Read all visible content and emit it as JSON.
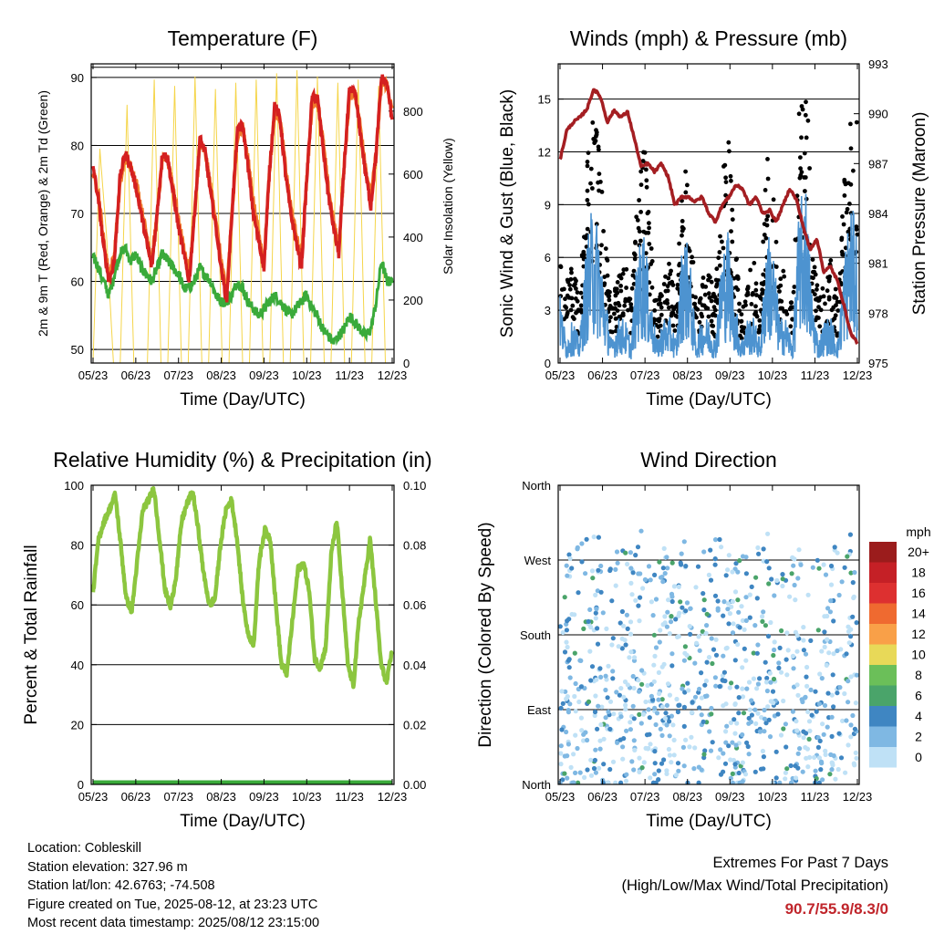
{
  "chart_data": [
    {
      "type": "line",
      "title": "Temperature (F)",
      "xlabel": "Time (Day/UTC)",
      "ylabel": "2m & 9m T (Red, Orange) & 2m Td (Green)",
      "ylabel_right": "Solar Insolation (Yellow)",
      "x_ticks": [
        "05/23",
        "06/23",
        "07/23",
        "08/23",
        "09/23",
        "10/23",
        "11/23",
        "12/23"
      ],
      "ylim": [
        48,
        92
      ],
      "y_ticks": [
        50,
        60,
        70,
        80,
        90
      ],
      "ylim_right": [
        0,
        950
      ],
      "y_ticks_right": [
        0,
        200,
        400,
        600,
        800
      ],
      "grid": "horizontal",
      "series": [
        {
          "name": "2m T",
          "color": "#d42020",
          "axis": "left",
          "values": [
            77,
            72,
            65,
            60,
            63,
            75,
            79,
            77,
            74,
            70,
            66,
            62,
            70,
            79,
            78,
            73,
            68,
            64,
            60,
            70,
            81,
            79,
            73,
            68,
            62,
            57,
            70,
            82,
            83,
            77,
            70,
            66,
            62,
            76,
            86,
            84,
            76,
            70,
            66,
            62,
            75,
            87,
            87,
            80,
            73,
            68,
            64,
            77,
            88,
            88,
            82,
            76,
            71,
            79,
            90,
            89,
            84
          ]
        },
        {
          "name": "9m T",
          "color": "#f07a2a",
          "axis": "left",
          "values": [
            76,
            73,
            66,
            61,
            64,
            74,
            78,
            77,
            75,
            71,
            67,
            63,
            70,
            78,
            78,
            74,
            69,
            65,
            61,
            70,
            80,
            79,
            74,
            69,
            63,
            58,
            70,
            81,
            83,
            78,
            72,
            67,
            63,
            76,
            85,
            84,
            77,
            71,
            67,
            63,
            75,
            86,
            87,
            81,
            74,
            69,
            65,
            77,
            87,
            88,
            83,
            77,
            72,
            79,
            89,
            89,
            85
          ]
        },
        {
          "name": "2m Td",
          "color": "#3aaa3a",
          "axis": "left",
          "values": [
            64,
            62,
            60,
            58,
            61,
            64,
            65,
            63,
            64,
            62,
            61,
            60,
            62,
            64,
            63,
            62,
            61,
            59,
            59,
            60,
            62,
            61,
            60,
            58,
            57,
            57,
            58,
            60,
            59,
            57,
            56,
            55,
            56,
            57,
            58,
            57,
            56,
            55,
            56,
            57,
            58,
            56,
            55,
            53,
            52,
            51,
            52,
            53,
            55,
            54,
            53,
            52,
            53,
            57,
            63,
            60,
            60
          ]
        },
        {
          "name": "Solar Insolation",
          "color": "#f5d54a",
          "axis": "right",
          "values": [
            0,
            680,
            400,
            0,
            0,
            820,
            0,
            0,
            0,
            900,
            0,
            0,
            880,
            0,
            0,
            910,
            0,
            0,
            870,
            0,
            0,
            890,
            0,
            0,
            900,
            0,
            0,
            920,
            0,
            0,
            930,
            0,
            0,
            910,
            0,
            0,
            890,
            0,
            0,
            900,
            0,
            0,
            880,
            0,
            0
          ]
        }
      ]
    },
    {
      "type": "scatter",
      "title": "Winds (mph) & Pressure (mb)",
      "xlabel": "Time (Day/UTC)",
      "ylabel": "Sonic Wind & Gust (Blue, Black)",
      "ylabel_right": "Station Pressure (Maroon)",
      "x_ticks": [
        "05/23",
        "06/23",
        "07/23",
        "08/23",
        "09/23",
        "10/23",
        "11/23",
        "12/23"
      ],
      "ylim": [
        0,
        17
      ],
      "y_ticks": [
        0,
        3,
        6,
        9,
        12,
        15
      ],
      "ylim_right": [
        975,
        993
      ],
      "y_ticks_right": [
        975,
        978,
        981,
        984,
        987,
        990,
        993
      ],
      "grid": "horizontal",
      "series": [
        {
          "name": "Gust",
          "color": "#000000",
          "axis": "left",
          "values": [
            6,
            4,
            5,
            3,
            9,
            12,
            11,
            6,
            3,
            4,
            5,
            3,
            8,
            11,
            6,
            3,
            4,
            5,
            3,
            10,
            8,
            3,
            4,
            5,
            3,
            9,
            11,
            6,
            3,
            4,
            5,
            3,
            10,
            8,
            4,
            5,
            3,
            12,
            15,
            6,
            3,
            4,
            5,
            3,
            9,
            12,
            13
          ]
        },
        {
          "name": "Sonic Wind",
          "color": "#4d93d0",
          "axis": "left",
          "values": [
            3,
            1,
            2,
            1,
            5,
            7,
            6,
            3,
            1,
            2,
            2,
            1,
            5,
            6,
            3,
            1,
            2,
            2,
            1,
            6,
            5,
            1,
            2,
            2,
            1,
            5,
            6,
            3,
            1,
            2,
            2,
            1,
            6,
            5,
            2,
            2,
            1,
            7,
            8,
            3,
            1,
            2,
            2,
            1,
            5,
            7,
            6
          ]
        },
        {
          "name": "Station Pressure",
          "color": "#a41e22",
          "axis": "right",
          "values": [
            987.2,
            989.0,
            989.5,
            989.8,
            990.3,
            991.5,
            991.0,
            989.5,
            990.2,
            989.8,
            990.1,
            988.5,
            986.8,
            987.0,
            986.5,
            987.0,
            986.2,
            984.5,
            985.0,
            985.0,
            984.7,
            985.0,
            984.0,
            983.5,
            984.5,
            985.0,
            985.7,
            985.5,
            984.5,
            985.0,
            984.0,
            984.2,
            983.5,
            984.5,
            985.5,
            984.8,
            983.2,
            981.8,
            982.5,
            980.5,
            980.8,
            980.0,
            978.5,
            976.8,
            976.2
          ]
        }
      ]
    },
    {
      "type": "line",
      "title": "Relative Humidity (%) & Precipitation (in)",
      "xlabel": "Time (Day/UTC)",
      "ylabel": "Percent & Total Rainfall",
      "x_ticks": [
        "05/23",
        "06/23",
        "07/23",
        "08/23",
        "09/23",
        "10/23",
        "11/23",
        "12/23"
      ],
      "ylim": [
        0,
        100
      ],
      "y_ticks": [
        0,
        20,
        40,
        60,
        80,
        100
      ],
      "ylim_right": [
        0,
        0.1
      ],
      "y_ticks_right": [
        "0.00",
        "0.02",
        "0.04",
        "0.06",
        "0.08",
        "0.10"
      ],
      "grid": "horizontal",
      "series": [
        {
          "name": "Relative Humidity",
          "color": "#8cc63f",
          "axis": "left",
          "values": [
            64,
            82,
            88,
            92,
            97,
            80,
            62,
            58,
            75,
            92,
            95,
            99,
            82,
            65,
            59,
            70,
            88,
            94,
            98,
            85,
            70,
            60,
            62,
            80,
            92,
            95,
            82,
            62,
            50,
            47,
            75,
            85,
            82,
            60,
            40,
            37,
            55,
            72,
            74,
            65,
            42,
            39,
            46,
            77,
            88,
            64,
            40,
            33,
            55,
            68,
            82,
            62,
            40,
            34,
            45
          ]
        },
        {
          "name": "Total Precipitation",
          "color": "#3aaa3a",
          "axis": "right",
          "values": [
            0,
            0,
            0,
            0,
            0,
            0,
            0,
            0,
            0,
            0,
            0,
            0,
            0,
            0,
            0,
            0,
            0,
            0,
            0,
            0
          ]
        }
      ]
    },
    {
      "type": "scatter",
      "title": "Wind Direction",
      "xlabel": "Time (Day/UTC)",
      "ylabel": "Direction (Colored By Speed)",
      "x_ticks": [
        "05/23",
        "06/23",
        "07/23",
        "08/23",
        "09/23",
        "10/23",
        "11/23",
        "12/23"
      ],
      "y_ticks": [
        "North",
        "East",
        "South",
        "West",
        "North"
      ],
      "ylim": [
        0,
        360
      ],
      "grid": "horizontal",
      "colorbar": {
        "title": "mph",
        "labels": [
          "20+",
          "18",
          "16",
          "14",
          "12",
          "10",
          "8",
          "6",
          "4",
          "2",
          "0"
        ],
        "colors": [
          "#9b1c1c",
          "#c52026",
          "#dd3030",
          "#ef6a30",
          "#f9a048",
          "#e8d958",
          "#6bbf59",
          "#4aa46a",
          "#3f86c2",
          "#7fb8e3",
          "#bfe1f6"
        ]
      }
    }
  ],
  "station_info": [
    "Location: Cobleskill",
    "Station elevation: 327.96 m",
    "Station lat/lon: 42.6763; -74.508",
    "Figure created on Tue, 2025-08-12, at 23:23 UTC",
    "Most recent data timestamp: 2025/08/12 23:15:00"
  ],
  "extremes": {
    "line1": "Extremes For Past 7 Days",
    "line2": "(High/Low/Max Wind/Total Precipitation)",
    "values": "90.7/55.9/8.3/0"
  }
}
